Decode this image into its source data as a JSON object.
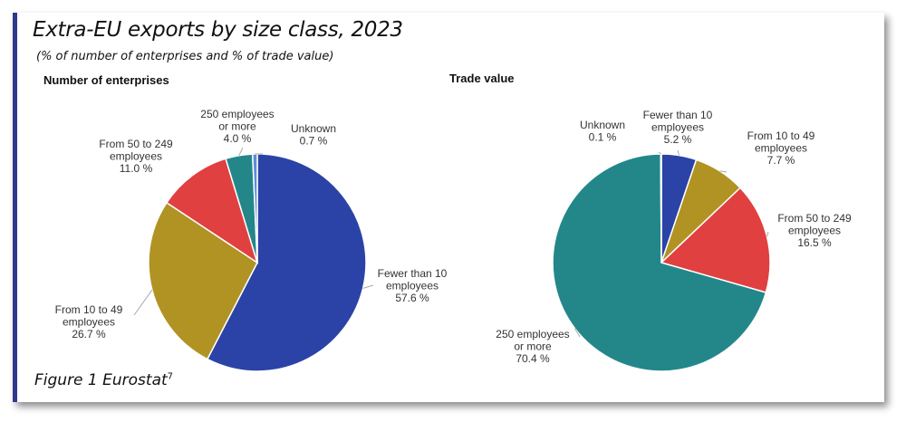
{
  "page": {
    "title": "Extra-EU exports by size class, 2023",
    "subtitle": "(% of number of enterprises and % of trade value)",
    "caption": "Figure 1 Eurostat",
    "caption_sup": "7"
  },
  "chart_data": [
    {
      "type": "pie",
      "title": "Number of enterprises",
      "slices": [
        {
          "label": [
            "Fewer than 10",
            "employees"
          ],
          "value": 57.6,
          "value_label": "57.6 %",
          "color": "#2b43a6"
        },
        {
          "label": [
            "From 10 to 49",
            "employees"
          ],
          "value": 26.7,
          "value_label": "26.7 %",
          "color": "#b09322"
        },
        {
          "label": [
            "From 50 to 249",
            "employees"
          ],
          "value": 11.0,
          "value_label": "11.0 %",
          "color": "#e04040"
        },
        {
          "label": [
            "250 employees",
            "or more"
          ],
          "value": 4.0,
          "value_label": "4.0 %",
          "color": "#23878a"
        },
        {
          "label": [
            "Unknown"
          ],
          "value": 0.7,
          "value_label": "0.7 %",
          "color": "#5b8ed8"
        }
      ]
    },
    {
      "type": "pie",
      "title": "Trade value",
      "slices": [
        {
          "label": [
            "Fewer than 10",
            "employees"
          ],
          "value": 5.2,
          "value_label": "5.2 %",
          "color": "#2b43a6"
        },
        {
          "label": [
            "From 10 to 49",
            "employees"
          ],
          "value": 7.7,
          "value_label": "7.7 %",
          "color": "#b09322"
        },
        {
          "label": [
            "From 50 to 249",
            "employees"
          ],
          "value": 16.5,
          "value_label": "16.5 %",
          "color": "#e04040"
        },
        {
          "label": [
            "250 employees",
            "or more"
          ],
          "value": 70.4,
          "value_label": "70.4 %",
          "color": "#23878a"
        },
        {
          "label": [
            "Unknown"
          ],
          "value": 0.1,
          "value_label": "0.1 %",
          "color": "#5b8ed8"
        }
      ]
    }
  ]
}
